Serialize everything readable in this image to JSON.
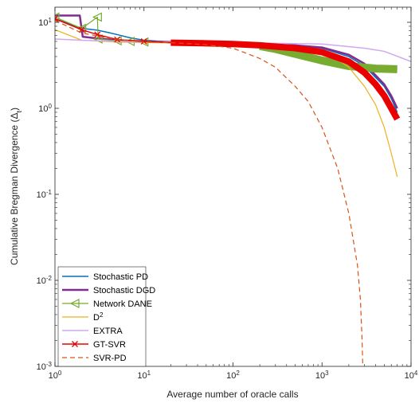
{
  "chart_data": {
    "type": "line",
    "title": "",
    "xlabel": "Average number of oracle calls",
    "ylabel": "Cumulative Bregman Divergence (Δ",
    "ylabel_sub": "t",
    "ylabel_close": ")",
    "xscale": "log",
    "yscale": "log",
    "xlim": [
      1,
      10000
    ],
    "ylim": [
      0.001,
      15
    ],
    "grid": false,
    "legend_position": "bottom-left",
    "x_ticks": [
      {
        "value": 1,
        "base": "10",
        "exp": "0"
      },
      {
        "value": 10,
        "base": "10",
        "exp": "1"
      },
      {
        "value": 100,
        "base": "10",
        "exp": "2"
      },
      {
        "value": 1000,
        "base": "10",
        "exp": "3"
      },
      {
        "value": 10000,
        "base": "10",
        "exp": "4"
      }
    ],
    "y_ticks": [
      {
        "value": 0.001,
        "base": "10",
        "exp": "-3"
      },
      {
        "value": 0.01,
        "base": "10",
        "exp": "-2"
      },
      {
        "value": 0.1,
        "base": "10",
        "exp": "-1"
      },
      {
        "value": 1,
        "base": "10",
        "exp": "0"
      },
      {
        "value": 10,
        "base": "10",
        "exp": "1"
      }
    ],
    "series": [
      {
        "name": "Stochastic PD",
        "name_sup": "",
        "color": "#0072bd",
        "dash": "",
        "width": 1.5,
        "marker": "none",
        "x": [
          1,
          1.5,
          2,
          3,
          4,
          5,
          7,
          10,
          20,
          50,
          100,
          200,
          500,
          1000,
          2000,
          3000,
          5000,
          6000,
          7000
        ],
        "y": [
          11,
          9.5,
          8.5,
          8.1,
          7.6,
          7.2,
          6.6,
          6.2,
          5.9,
          5.8,
          5.7,
          5.6,
          5.4,
          5.0,
          4.0,
          3.1,
          1.8,
          1.3,
          0.9
        ]
      },
      {
        "name": "Stochastic DGD",
        "name_sup": "",
        "color": "#7e2f8e",
        "dash": "",
        "width": 2.5,
        "marker": "none",
        "x": [
          1,
          1.9,
          2.05,
          3,
          5,
          10,
          20,
          50,
          100,
          200,
          500,
          1000,
          2000,
          3000,
          5000,
          6000,
          7000
        ],
        "y": [
          12,
          12,
          6.8,
          6.5,
          6.2,
          6.0,
          5.9,
          5.8,
          5.7,
          5.6,
          5.4,
          5.1,
          4.2,
          3.3,
          1.9,
          1.4,
          1.0
        ]
      },
      {
        "name": "Network DANE",
        "name_sup": "",
        "color": "#77ac30",
        "dash": "",
        "width": 1.2,
        "marker": "triangle-left",
        "band_width": 10,
        "band_from": 200,
        "x": [
          1,
          2,
          3,
          3.05,
          5,
          7,
          10,
          20,
          50,
          100,
          200,
          300,
          500,
          1000,
          2000,
          4000,
          7000
        ],
        "y": [
          11.5,
          8.5,
          11.5,
          6.4,
          6.1,
          6.0,
          5.9,
          5.8,
          5.7,
          5.6,
          5.3,
          4.9,
          4.3,
          3.6,
          3.1,
          2.9,
          2.85
        ]
      },
      {
        "name": "D",
        "name_sup": "2",
        "color": "#edb120",
        "dash": "",
        "width": 1.2,
        "marker": "none",
        "x": [
          1,
          2,
          5,
          10,
          50,
          100,
          200,
          500,
          1000,
          1500,
          2000,
          3000,
          4000,
          5000,
          6000,
          7000
        ],
        "y": [
          8.2,
          6.2,
          5.9,
          5.8,
          5.7,
          5.6,
          5.4,
          5.0,
          4.4,
          3.7,
          3.0,
          1.8,
          1.1,
          0.6,
          0.3,
          0.16
        ]
      },
      {
        "name": "EXTRA",
        "name_sup": "",
        "color": "#cfa8ef",
        "dash": "",
        "width": 1.5,
        "marker": "none",
        "x": [
          1,
          2,
          5,
          10,
          100,
          1000,
          3000,
          5000,
          10000
        ],
        "y": [
          6.4,
          6.2,
          6.0,
          5.9,
          5.8,
          5.6,
          5.0,
          4.6,
          3.5
        ]
      },
      {
        "name": "GT-SVR",
        "name_sup": "",
        "color": "#ea0000",
        "dash": "",
        "width": 1.5,
        "marker": "x",
        "band_width": 8,
        "band_from": 20,
        "x": [
          1,
          2,
          3,
          5,
          10,
          20,
          50,
          100,
          200,
          500,
          1000,
          2000,
          3000,
          4000,
          5000,
          6000,
          7000
        ],
        "y": [
          11,
          8.2,
          7.2,
          6.3,
          6.0,
          5.8,
          5.7,
          5.6,
          5.4,
          5.0,
          4.5,
          3.5,
          2.6,
          1.9,
          1.4,
          1.0,
          0.75
        ]
      },
      {
        "name": "SVR-PD",
        "name_sup": "",
        "color": "#d95319",
        "dash": "6,4",
        "width": 1.2,
        "marker": "none",
        "x": [
          1,
          2,
          5,
          10,
          20,
          50,
          100,
          200,
          300,
          500,
          700,
          1000,
          1500,
          2000,
          2500,
          2700,
          2820,
          2870
        ],
        "y": [
          10.5,
          7.5,
          6.3,
          5.9,
          5.8,
          5.5,
          5.0,
          3.8,
          3.0,
          1.8,
          1.2,
          0.6,
          0.2,
          0.06,
          0.015,
          0.006,
          0.002,
          0.001
        ]
      }
    ]
  }
}
